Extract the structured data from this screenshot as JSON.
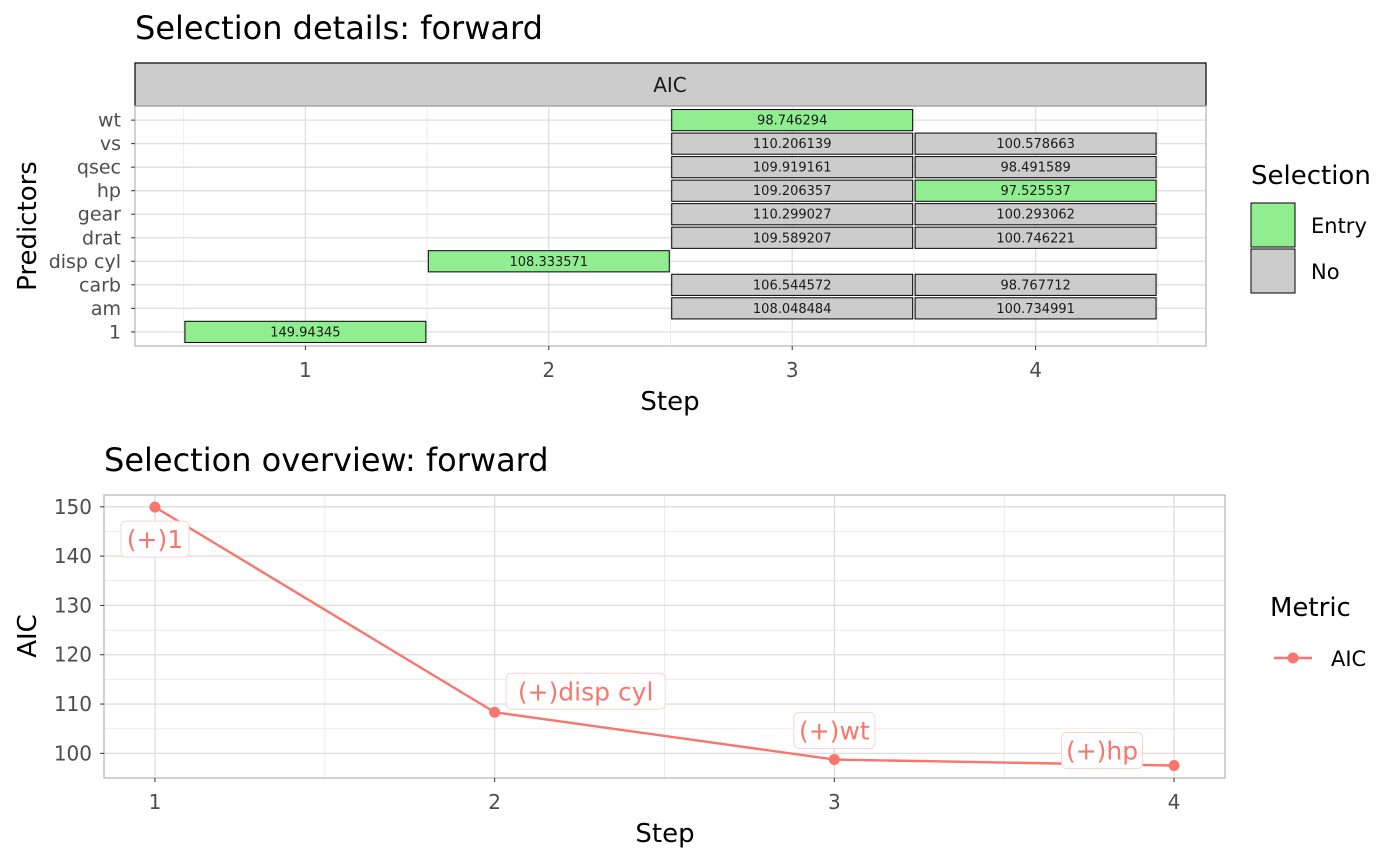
{
  "chart_data": [
    {
      "type": "heatmap",
      "title": "Selection details: forward",
      "facet_label": "AIC",
      "xlabel": "Step",
      "ylabel": "Predictors",
      "x_ticks": [
        "1",
        "2",
        "3",
        "4"
      ],
      "y_categories": [
        "1",
        "am",
        "carb",
        "disp cyl",
        "drat",
        "gear",
        "hp",
        "qsec",
        "vs",
        "wt"
      ],
      "legend": {
        "title": "Selection",
        "position": "right",
        "entries": [
          {
            "label": "Entry",
            "color": "#90EE90"
          },
          {
            "label": "No",
            "color": "#CCCCCC"
          }
        ]
      },
      "grid": true,
      "cells": [
        {
          "step": 1,
          "predictor": "1",
          "value": "149.94345",
          "selection": "Entry"
        },
        {
          "step": 2,
          "predictor": "disp cyl",
          "value": "108.333571",
          "selection": "Entry"
        },
        {
          "step": 3,
          "predictor": "wt",
          "value": "98.746294",
          "selection": "Entry"
        },
        {
          "step": 3,
          "predictor": "vs",
          "value": "110.206139",
          "selection": "No"
        },
        {
          "step": 3,
          "predictor": "qsec",
          "value": "109.919161",
          "selection": "No"
        },
        {
          "step": 3,
          "predictor": "hp",
          "value": "109.206357",
          "selection": "No"
        },
        {
          "step": 3,
          "predictor": "gear",
          "value": "110.299027",
          "selection": "No"
        },
        {
          "step": 3,
          "predictor": "drat",
          "value": "109.589207",
          "selection": "No"
        },
        {
          "step": 3,
          "predictor": "carb",
          "value": "106.544572",
          "selection": "No"
        },
        {
          "step": 3,
          "predictor": "am",
          "value": "108.048484",
          "selection": "No"
        },
        {
          "step": 4,
          "predictor": "vs",
          "value": "100.578663",
          "selection": "No"
        },
        {
          "step": 4,
          "predictor": "qsec",
          "value": "98.491589",
          "selection": "No"
        },
        {
          "step": 4,
          "predictor": "hp",
          "value": "97.525537",
          "selection": "Entry"
        },
        {
          "step": 4,
          "predictor": "gear",
          "value": "100.293062",
          "selection": "No"
        },
        {
          "step": 4,
          "predictor": "drat",
          "value": "100.746221",
          "selection": "No"
        },
        {
          "step": 4,
          "predictor": "carb",
          "value": "98.767712",
          "selection": "No"
        },
        {
          "step": 4,
          "predictor": "am",
          "value": "100.734991",
          "selection": "No"
        }
      ]
    },
    {
      "type": "line",
      "title": "Selection overview: forward",
      "xlabel": "Step",
      "ylabel": "AIC",
      "x": [
        1,
        2,
        3,
        4
      ],
      "x_ticks": [
        "1",
        "2",
        "3",
        "4"
      ],
      "y_ticks": [
        "100",
        "110",
        "120",
        "130",
        "140",
        "150"
      ],
      "ylim": [
        95.0,
        152.4
      ],
      "xlim": [
        0.85,
        4.15
      ],
      "grid": true,
      "series": [
        {
          "name": "AIC",
          "color": "#F8766D",
          "values": [
            149.94345,
            108.333571,
            98.746294,
            97.525537
          ],
          "labels": [
            "(+)1",
            "(+)disp cyl",
            "(+)wt",
            "(+)hp"
          ]
        }
      ],
      "legend": {
        "title": "Metric",
        "position": "right",
        "entries": [
          "AIC"
        ]
      }
    }
  ]
}
